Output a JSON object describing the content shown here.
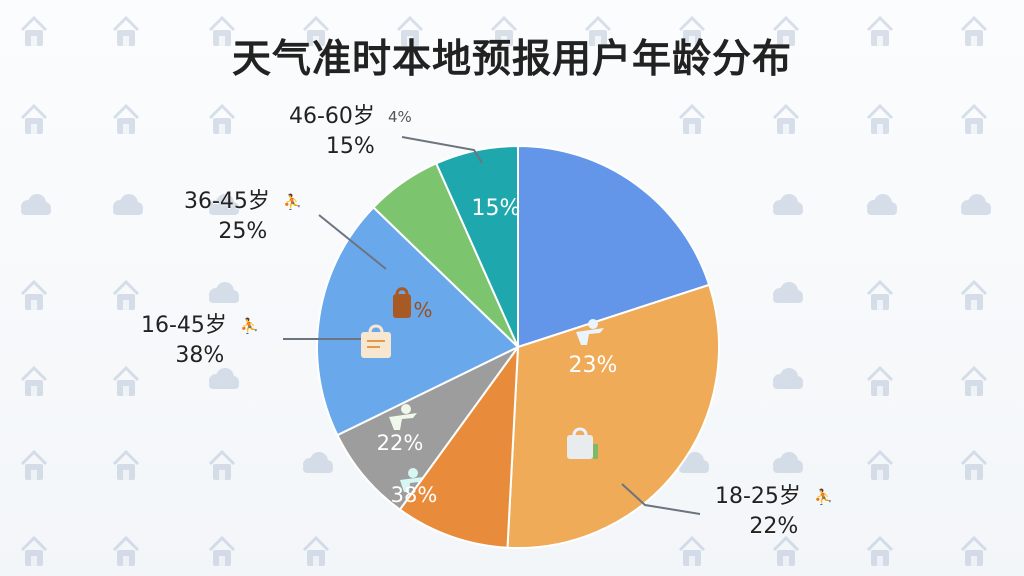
{
  "chart_data": {
    "type": "pie",
    "title": "天气准时本地预报用户年龄分布",
    "legend": "none",
    "slices": [
      {
        "label": "18-25岁",
        "value": 22,
        "display_value": "22%",
        "color": "#5a8fe8"
      },
      {
        "label": "16-45岁",
        "value": 38,
        "display_value": "38%",
        "color": "#efab58"
      },
      {
        "label": "36-45岁",
        "value": 25,
        "display_value": "25%",
        "color": "#e88c3c"
      },
      {
        "label": "46-60岁",
        "value": 15,
        "display_value": "15%",
        "color": "#9d9d9d"
      },
      {
        "label": "",
        "value": 23,
        "display_value": "23%",
        "color": "#6aa8ec"
      },
      {
        "label": "",
        "value": 22,
        "display_value": "22%",
        "color": "#7cc56e"
      },
      {
        "label": "",
        "value": 38,
        "display_value": "38%",
        "color": "#1ea7ad"
      }
    ]
  },
  "labels": {
    "age_46_60": "46-60岁",
    "pct_46_60": "15%",
    "age_36_45": "36-45岁",
    "pct_36_45": "25%",
    "age_16_45": "16-45岁",
    "pct_16_45": "38%",
    "age_18_25": "18-25岁",
    "pct_18_25": "22%",
    "inside_15": "15%",
    "inside_23": "23%",
    "inside_22": "22%",
    "inside_38": "38%",
    "inside_pct": "%",
    "tiny_4pct": "4%"
  },
  "icons": {
    "house_bg": "house-icon",
    "cloud_bg": "cloud-icon",
    "bag": "shopping-bag-icon",
    "person": "person-icon"
  }
}
